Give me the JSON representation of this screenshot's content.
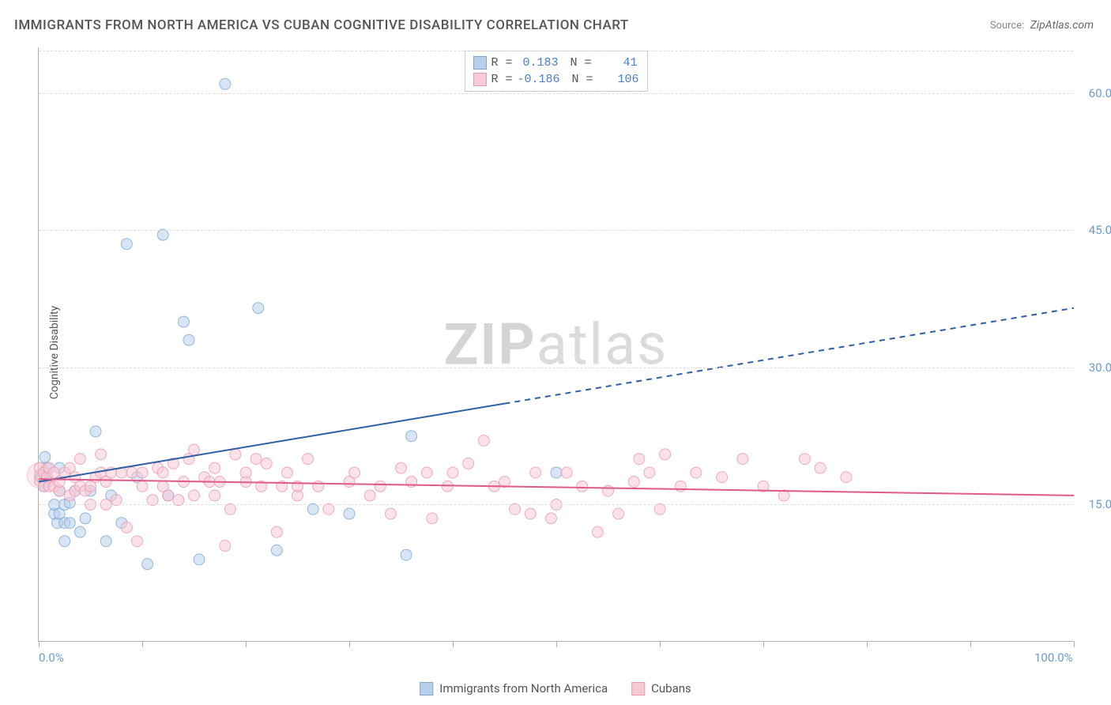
{
  "title": "IMMIGRANTS FROM NORTH AMERICA VS CUBAN COGNITIVE DISABILITY CORRELATION CHART",
  "source": {
    "label": "Source:",
    "name": "ZipAtlas.com"
  },
  "watermark": {
    "bold": "ZIP",
    "rest": "atlas"
  },
  "chart": {
    "type": "scatter",
    "ylabel": "Cognitive Disability",
    "xlim": [
      0,
      100
    ],
    "ylim": [
      0,
      65
    ],
    "background_color": "#ffffff",
    "grid_color": "#dddddd",
    "axis_color": "#b0b0b0",
    "tick_label_color": "#6b9bd1",
    "yticks": [
      15.0,
      30.0,
      45.0,
      60.0
    ],
    "ytick_labels": [
      "15.0%",
      "30.0%",
      "45.0%",
      "60.0%"
    ],
    "xticks": [
      0,
      10,
      20,
      30,
      40,
      50,
      60,
      70,
      80,
      90,
      100
    ],
    "xtick_labels": {
      "0": "0.0%",
      "100": "100.0%"
    },
    "series": [
      {
        "name": "Immigrants from North America",
        "color_fill": "#b8d0ec",
        "color_stroke": "#7ba7d4",
        "marker_opacity": 0.55,
        "marker_radius": 7,
        "R": "0.183",
        "N": "41",
        "trend": {
          "x1": 0,
          "y1": 17.5,
          "x2": 100,
          "y2": 36.5,
          "solid_end_x": 45,
          "color": "#2e5fa8",
          "width": 2,
          "dash_after": true
        },
        "points": [
          [
            0.2,
            18.0
          ],
          [
            0.3,
            18.2
          ],
          [
            0.5,
            17.0
          ],
          [
            0.8,
            17.5
          ],
          [
            0.8,
            19.0
          ],
          [
            0.6,
            20.2
          ],
          [
            1.5,
            14.0
          ],
          [
            1.5,
            15.0
          ],
          [
            1.8,
            13.0
          ],
          [
            2.0,
            14.0
          ],
          [
            2.0,
            16.5
          ],
          [
            2.0,
            19.0
          ],
          [
            2.5,
            11.0
          ],
          [
            2.5,
            13.0
          ],
          [
            2.5,
            15.0
          ],
          [
            3.0,
            13.0
          ],
          [
            3.0,
            15.2
          ],
          [
            3.5,
            16.5
          ],
          [
            4.0,
            12.0
          ],
          [
            4.5,
            13.5
          ],
          [
            5.0,
            16.5
          ],
          [
            5.5,
            23.0
          ],
          [
            6.5,
            11.0
          ],
          [
            7.0,
            16.0
          ],
          [
            8.0,
            13.0
          ],
          [
            8.5,
            43.5
          ],
          [
            9.5,
            18.0
          ],
          [
            10.5,
            8.5
          ],
          [
            12.0,
            44.5
          ],
          [
            12.5,
            16.0
          ],
          [
            14.0,
            35.0
          ],
          [
            14.5,
            33.0
          ],
          [
            15.5,
            9.0
          ],
          [
            18.0,
            61.0
          ],
          [
            21.2,
            36.5
          ],
          [
            23.0,
            10.0
          ],
          [
            26.5,
            14.5
          ],
          [
            30.0,
            14.0
          ],
          [
            35.5,
            9.5
          ],
          [
            36.0,
            22.5
          ],
          [
            50.0,
            18.5
          ]
        ]
      },
      {
        "name": "Cubans",
        "color_fill": "#f7cad6",
        "color_stroke": "#e99ab0",
        "marker_opacity": 0.55,
        "marker_radius": 7,
        "R": "-0.186",
        "N": "106",
        "trend": {
          "x1": 0,
          "y1": 17.8,
          "x2": 100,
          "y2": 16.0,
          "solid_end_x": 100,
          "color": "#e05a8a",
          "width": 2,
          "dash_after": false
        },
        "points": [
          [
            0.1,
            17.6
          ],
          [
            0.1,
            19.0
          ],
          [
            0.1,
            18.2
          ],
          [
            0.5,
            17.0
          ],
          [
            0.5,
            18.5
          ],
          [
            0.8,
            18.0
          ],
          [
            1.0,
            17.0
          ],
          [
            1.0,
            19.0
          ],
          [
            1.5,
            17.0
          ],
          [
            1.5,
            18.5
          ],
          [
            2.0,
            16.5
          ],
          [
            2.0,
            17.5
          ],
          [
            2.5,
            18.5
          ],
          [
            3.0,
            16.0
          ],
          [
            3.0,
            19.0
          ],
          [
            3.5,
            16.5
          ],
          [
            3.5,
            18.0
          ],
          [
            4.0,
            17.0
          ],
          [
            4.0,
            20.0
          ],
          [
            4.5,
            16.5
          ],
          [
            5.0,
            17.0
          ],
          [
            5.0,
            15.0
          ],
          [
            5.5,
            18.0
          ],
          [
            6.0,
            18.5
          ],
          [
            6.0,
            20.5
          ],
          [
            6.5,
            15.0
          ],
          [
            6.5,
            17.5
          ],
          [
            7.0,
            18.5
          ],
          [
            7.5,
            15.5
          ],
          [
            8.0,
            18.5
          ],
          [
            8.5,
            12.5
          ],
          [
            9.0,
            18.5
          ],
          [
            9.5,
            11.0
          ],
          [
            10.0,
            17.0
          ],
          [
            10.0,
            18.5
          ],
          [
            11.0,
            15.5
          ],
          [
            11.5,
            19.0
          ],
          [
            12.0,
            17.0
          ],
          [
            12.0,
            18.5
          ],
          [
            12.5,
            16.0
          ],
          [
            13.0,
            19.5
          ],
          [
            13.5,
            15.5
          ],
          [
            14.0,
            17.5
          ],
          [
            14.5,
            20.0
          ],
          [
            15.0,
            16.0
          ],
          [
            15.0,
            21.0
          ],
          [
            16.0,
            18.0
          ],
          [
            16.5,
            17.5
          ],
          [
            17.0,
            16.0
          ],
          [
            17.0,
            19.0
          ],
          [
            17.5,
            17.5
          ],
          [
            18.0,
            10.5
          ],
          [
            18.5,
            14.5
          ],
          [
            19.0,
            20.5
          ],
          [
            20.0,
            17.5
          ],
          [
            20.0,
            18.5
          ],
          [
            21.0,
            20.0
          ],
          [
            21.5,
            17.0
          ],
          [
            22.0,
            19.5
          ],
          [
            23.0,
            12.0
          ],
          [
            23.5,
            17.0
          ],
          [
            24.0,
            18.5
          ],
          [
            25.0,
            16.0
          ],
          [
            25.0,
            17.0
          ],
          [
            26.0,
            20.0
          ],
          [
            27.0,
            17.0
          ],
          [
            28.0,
            14.5
          ],
          [
            30.0,
            17.5
          ],
          [
            30.5,
            18.5
          ],
          [
            32.0,
            16.0
          ],
          [
            33.0,
            17.0
          ],
          [
            34.0,
            14.0
          ],
          [
            35.0,
            19.0
          ],
          [
            36.0,
            17.5
          ],
          [
            37.5,
            18.5
          ],
          [
            38.0,
            13.5
          ],
          [
            39.5,
            17.0
          ],
          [
            40.0,
            18.5
          ],
          [
            41.5,
            19.5
          ],
          [
            43.0,
            22.0
          ],
          [
            44.0,
            17.0
          ],
          [
            45.0,
            17.5
          ],
          [
            46.0,
            14.5
          ],
          [
            47.5,
            14.0
          ],
          [
            48.0,
            18.5
          ],
          [
            49.5,
            13.5
          ],
          [
            50.0,
            15.0
          ],
          [
            51.0,
            18.5
          ],
          [
            52.5,
            17.0
          ],
          [
            54.0,
            12.0
          ],
          [
            55.0,
            16.5
          ],
          [
            56.0,
            14.0
          ],
          [
            57.5,
            17.5
          ],
          [
            58.0,
            20.0
          ],
          [
            59.0,
            18.5
          ],
          [
            60.0,
            14.5
          ],
          [
            60.5,
            20.5
          ],
          [
            62.0,
            17.0
          ],
          [
            63.5,
            18.5
          ],
          [
            66.0,
            18.0
          ],
          [
            68.0,
            20.0
          ],
          [
            70.0,
            17.0
          ],
          [
            72.0,
            16.0
          ],
          [
            74.0,
            20.0
          ],
          [
            75.5,
            19.0
          ],
          [
            78.0,
            18.0
          ]
        ]
      }
    ]
  },
  "bottom_legend": [
    {
      "label": "Immigrants from North America",
      "fill": "#b8d0ec",
      "stroke": "#7ba7d4"
    },
    {
      "label": "Cubans",
      "fill": "#f7cad6",
      "stroke": "#e99ab0"
    }
  ]
}
